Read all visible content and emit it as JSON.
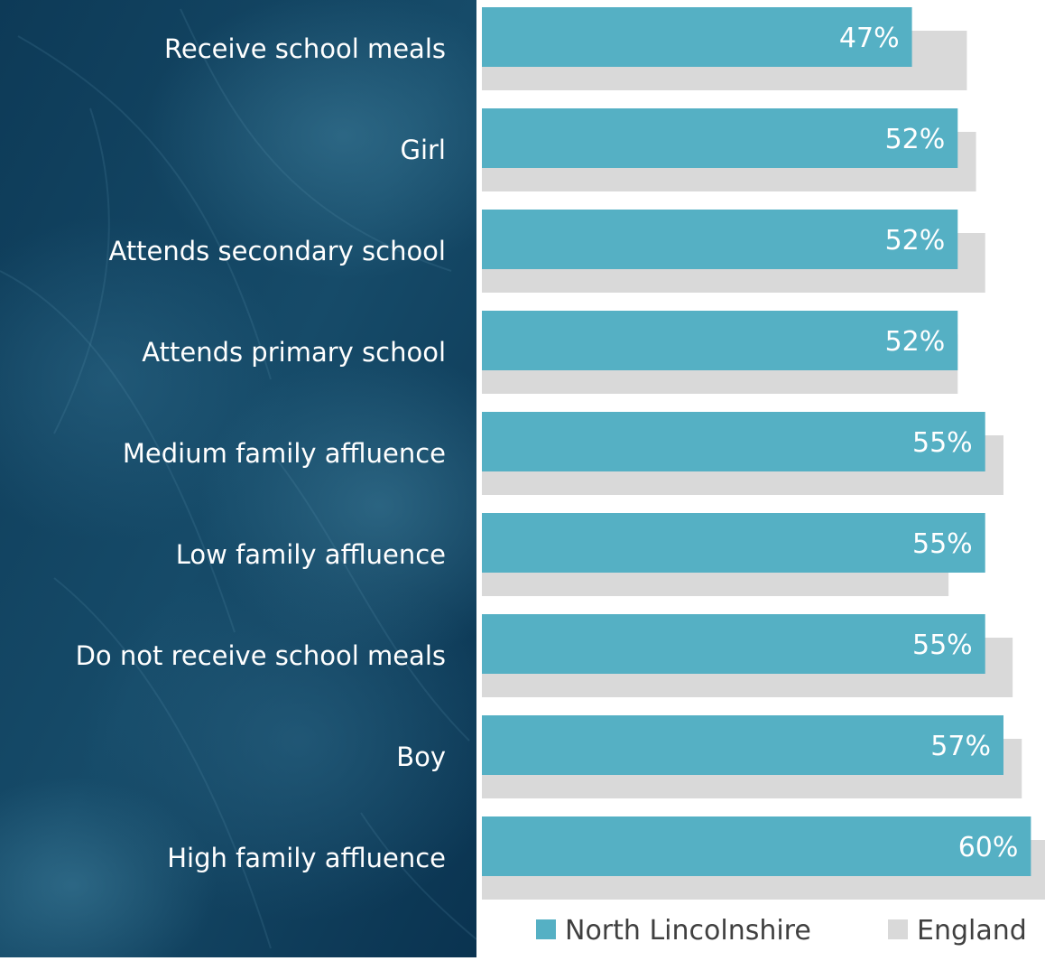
{
  "colors": {
    "north_lincolnshire": "#55b0c4",
    "england": "#d9d9d9",
    "panel_dark": "#0b3653",
    "panel_mid": "#1e5878",
    "label_text": "#ffffff",
    "bar_label_text": "#ffffff",
    "legend_text": "#404040"
  },
  "chart_data": {
    "type": "bar",
    "orientation": "horizontal",
    "categories": [
      "Receive school meals",
      "Girl",
      "Attends secondary school",
      "Attends primary school ",
      "Medium family affluence",
      "Low family affluence",
      "Do not receive school meals",
      "Boy",
      "High family affluence"
    ],
    "series": [
      {
        "name": "North Lincolnshire",
        "values": [
          47,
          52,
          52,
          52,
          55,
          55,
          55,
          57,
          60
        ],
        "labels": [
          "47%",
          "52%",
          "52%",
          "52%",
          "55%",
          "55%",
          "55%",
          "57%",
          "60%"
        ]
      },
      {
        "name": "England",
        "values": [
          53,
          54,
          55,
          52,
          57,
          51,
          58,
          59,
          64
        ]
      }
    ],
    "xlim": [
      0,
      65
    ],
    "grid": false,
    "legend_position": "bottom-right"
  }
}
